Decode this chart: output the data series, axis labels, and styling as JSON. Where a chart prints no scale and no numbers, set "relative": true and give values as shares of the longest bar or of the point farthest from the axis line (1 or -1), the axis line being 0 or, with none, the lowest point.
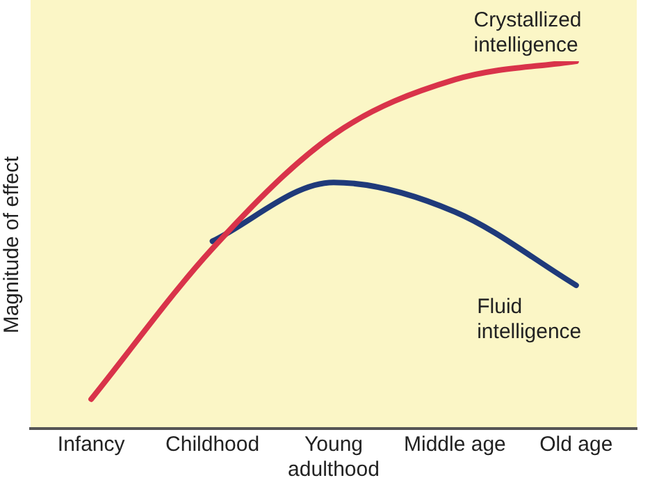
{
  "chart_data": {
    "type": "line",
    "ylabel": "Magnitude of effect",
    "relative": true,
    "grid": false,
    "legend": false,
    "marker": "none",
    "line_style": "solid",
    "categories": [
      "Infancy",
      "Childhood",
      "Young adulthood",
      "Middle age",
      "Old age"
    ],
    "series": [
      {
        "name": "Crystallized intelligence",
        "color": "#d9334a",
        "values": [
          0.08,
          0.49,
          0.8,
          0.95,
          1
        ]
      },
      {
        "name": "Fluid intelligence",
        "color": "#1f3a7a",
        "values": [
          null,
          0.51,
          0.67,
          0.59,
          0.39
        ]
      }
    ]
  }
}
